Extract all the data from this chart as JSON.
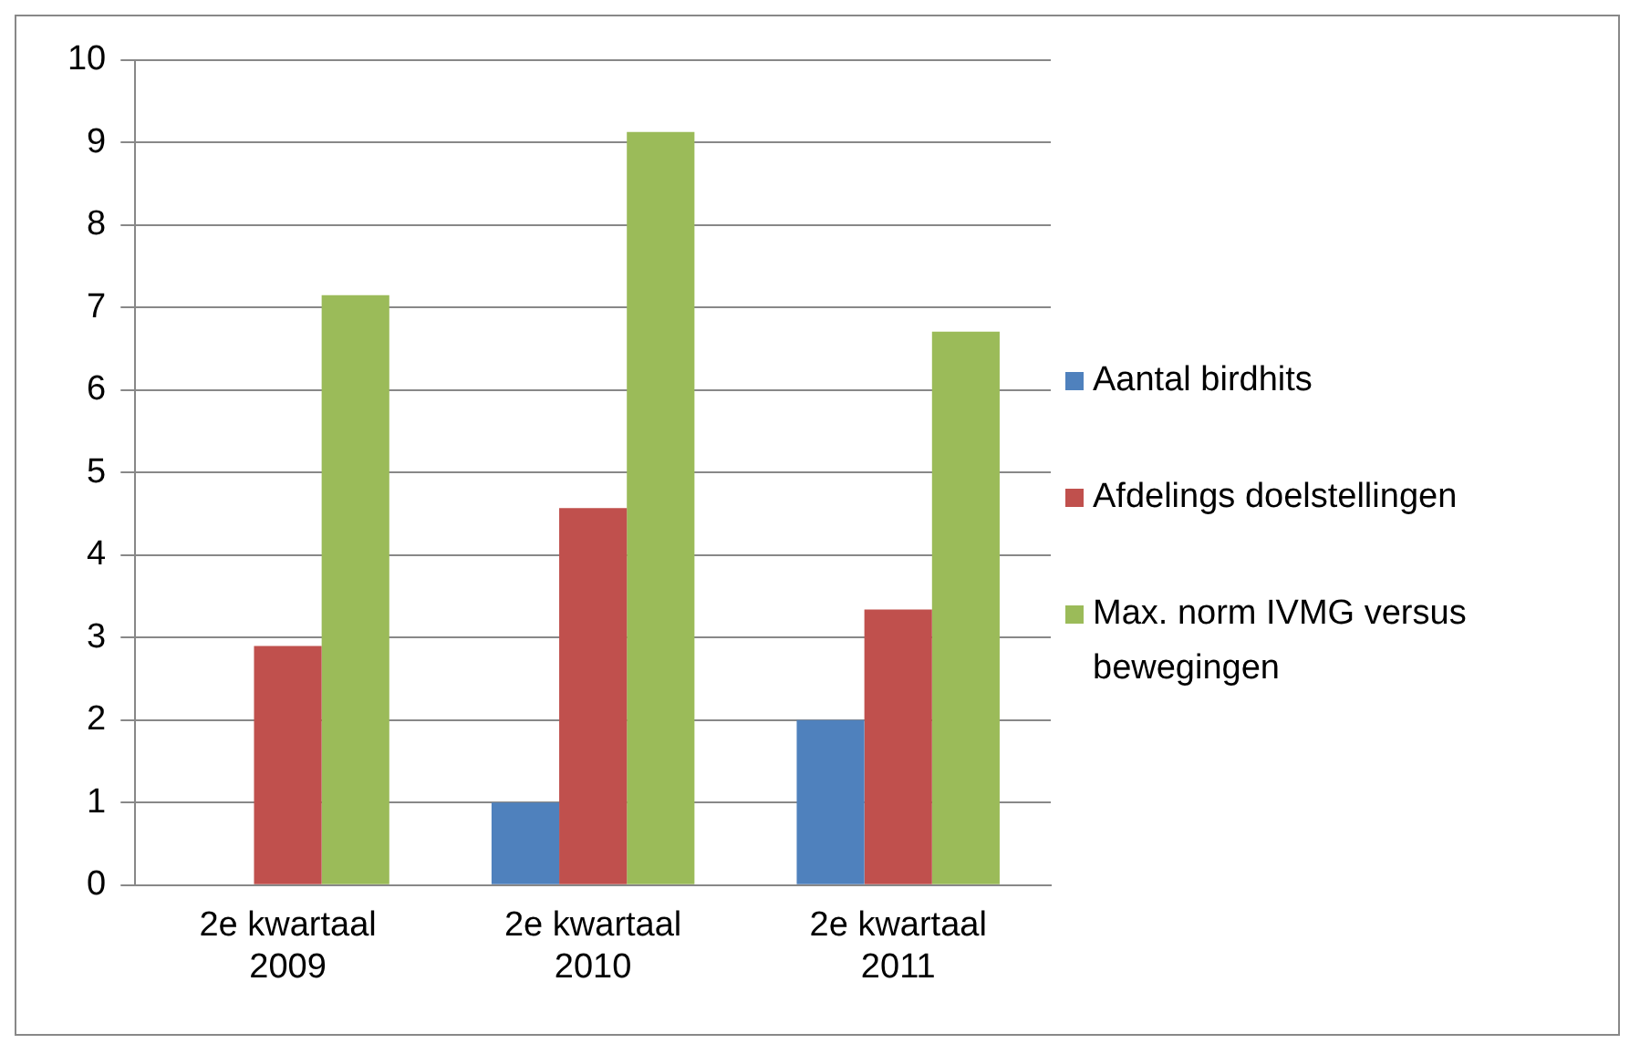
{
  "chart_data": {
    "type": "bar",
    "categories": [
      "2e kwartaal 2009",
      "2e kwartaal 2010",
      "2e kwartaal 2011"
    ],
    "series": [
      {
        "name": "Aantal birdhits",
        "color": "#4f81bd",
        "values": [
          0,
          1,
          2
        ]
      },
      {
        "name": "Afdelings doelstellingen",
        "color": "#c0504d",
        "values": [
          2.9,
          4.57,
          3.34
        ]
      },
      {
        "name": "Max. norm IVMG versus bewegingen",
        "color": "#9bbb59",
        "values": [
          7.15,
          9.13,
          6.71
        ]
      }
    ],
    "ylim": [
      0,
      10
    ],
    "yticks": [
      0,
      1,
      2,
      3,
      4,
      5,
      6,
      7,
      8,
      9,
      10
    ],
    "grid": "y",
    "legend": "right"
  }
}
